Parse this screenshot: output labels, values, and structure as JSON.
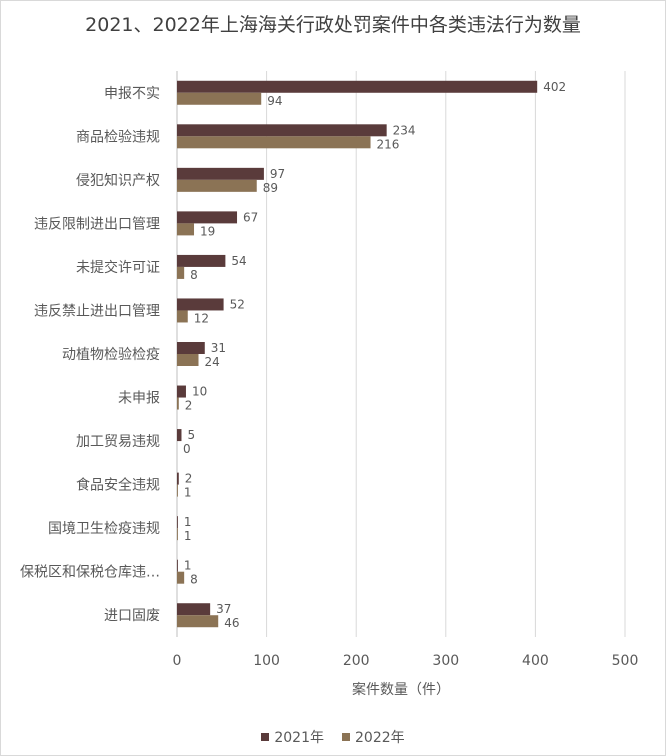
{
  "chart_data": {
    "type": "bar",
    "orientation": "horizontal",
    "title": "2021、2022年上海海关行政处罚案件中各类违法行为数量",
    "xlabel": "案件数量（件）",
    "ylabel": "",
    "xlim": [
      0,
      500
    ],
    "xticks": [
      0,
      100,
      200,
      300,
      400,
      500
    ],
    "grid": "vertical",
    "legend_position": "bottom",
    "categories": [
      "申报不实",
      "商品检验违规",
      "侵犯知识产权",
      "违反限制进出口管理",
      "未提交许可证",
      "违反禁止进出口管理",
      "动植物检验检疫",
      "未申报",
      "加工贸易违规",
      "食品安全违规",
      "国境卫生检疫违规",
      "保税区和保税仓库违…",
      "进口固废"
    ],
    "series": [
      {
        "name": "2021年",
        "color": "#5a3b3b",
        "values": [
          402,
          234,
          97,
          67,
          54,
          52,
          31,
          10,
          5,
          2,
          1,
          1,
          37
        ]
      },
      {
        "name": "2022年",
        "color": "#8b7355",
        "values": [
          94,
          216,
          89,
          19,
          8,
          12,
          24,
          2,
          0,
          1,
          1,
          8,
          46
        ]
      }
    ]
  }
}
